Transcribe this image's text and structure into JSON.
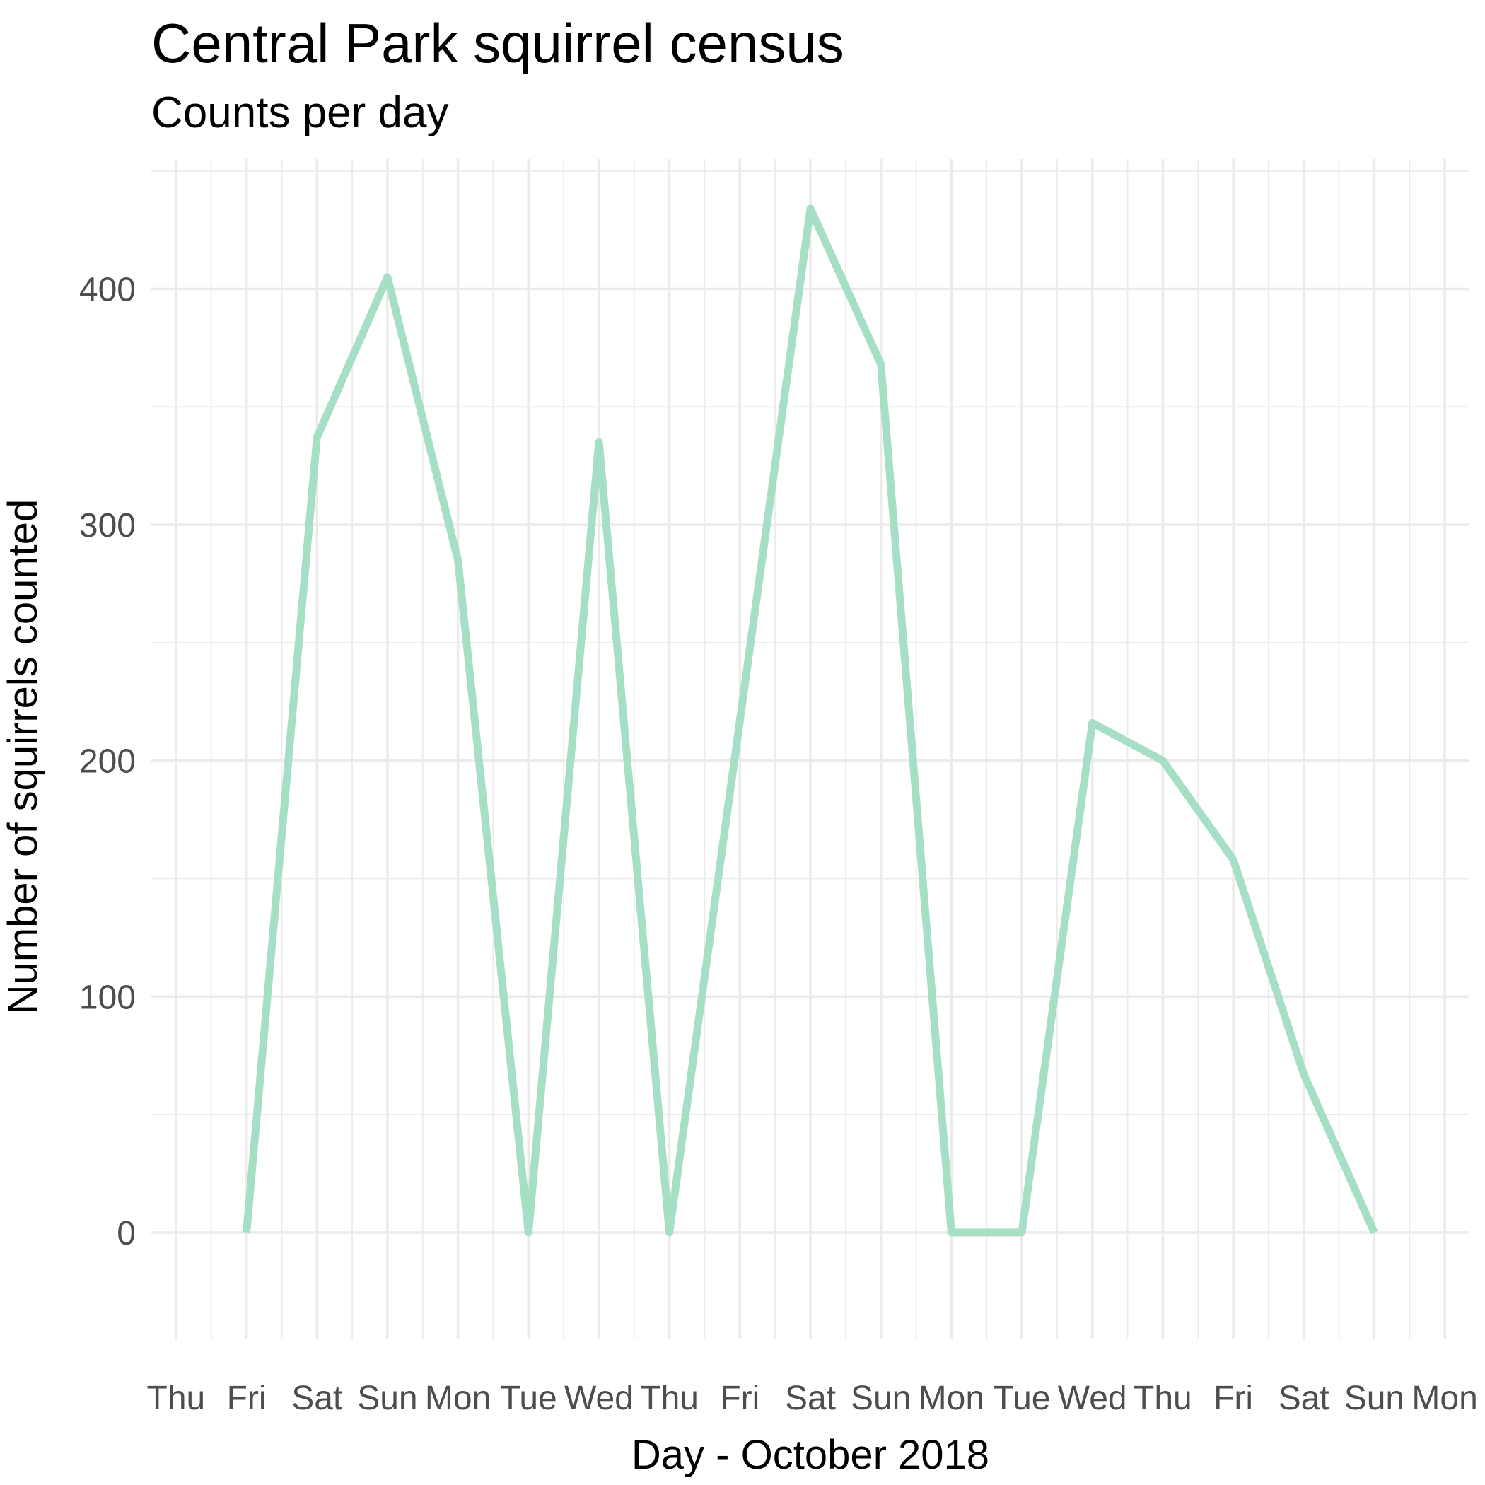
{
  "colors": {
    "series_line": "#a6dec6",
    "grid": "#ebebeb",
    "tick_text": "#4d4d4d",
    "text": "#000000",
    "background": "#ffffff"
  },
  "chart_data": {
    "type": "line",
    "title": "Central Park squirrel census",
    "subtitle": "Counts per day",
    "xlabel": "Day - October 2018",
    "ylabel": "Number of squirrels counted",
    "x_ticks": [
      "Thu",
      "Fri",
      "Sat",
      "Sun",
      "Mon",
      "Tue",
      "Wed",
      "Thu",
      "Fri",
      "Sat",
      "Sun",
      "Mon",
      "Tue",
      "Wed",
      "Thu",
      "Fri",
      "Sat",
      "Sun",
      "Mon"
    ],
    "y_ticks": [
      0,
      100,
      200,
      300,
      400
    ],
    "ylim": [
      -45,
      455
    ],
    "xlim": [
      -0.35,
      18.35
    ],
    "grid": true,
    "legend": "none",
    "series": [
      {
        "x": [
          1,
          2,
          3,
          4,
          5,
          6,
          7,
          8,
          9,
          10,
          11,
          12,
          13,
          14,
          15,
          16,
          17
        ],
        "values": [
          0,
          337,
          405,
          285,
          0,
          335,
          0,
          217,
          434,
          368,
          0,
          0,
          216,
          200,
          158,
          67,
          0
        ]
      }
    ]
  }
}
